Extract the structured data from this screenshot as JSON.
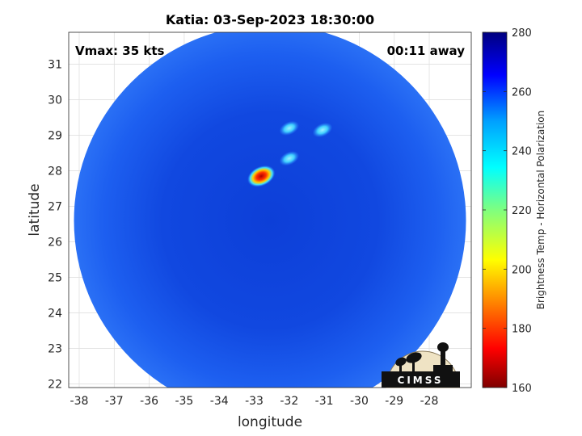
{
  "chart_data": {
    "type": "heatmap",
    "title": "Katia: 03-Sep-2023 18:30:00",
    "xlabel": "longitude",
    "ylabel": "latitude",
    "xlim": [
      -38.3,
      -26.8
    ],
    "ylim": [
      21.9,
      31.9
    ],
    "x_ticks": [
      -38,
      -37,
      -36,
      -35,
      -34,
      -33,
      -32,
      -31,
      -30,
      -29,
      -28
    ],
    "y_ticks": [
      22,
      23,
      24,
      25,
      26,
      27,
      28,
      29,
      30,
      31
    ],
    "grid": true,
    "annotations": {
      "vmax": "Vmax: 35 kts",
      "time_away": "00:11 away"
    },
    "swath": {
      "center": [
        -32.55,
        26.6
      ],
      "radius_deg": 5.6,
      "background_value": 262
    },
    "features": [
      {
        "lon": -32.8,
        "lat": 27.85,
        "value": 180
      },
      {
        "lon": -32.0,
        "lat": 28.35,
        "value": 238
      },
      {
        "lon": -31.05,
        "lat": 29.15,
        "value": 238
      },
      {
        "lon": -32.0,
        "lat": 29.2,
        "value": 245
      }
    ],
    "colorbar": {
      "label": "Brightness Temp - Horizontal Polarization",
      "min": 160,
      "max": 280,
      "ticks": [
        160,
        180,
        200,
        220,
        240,
        260,
        280
      ],
      "colormap": "jet"
    },
    "logo": {
      "text": "CIMSS"
    }
  }
}
